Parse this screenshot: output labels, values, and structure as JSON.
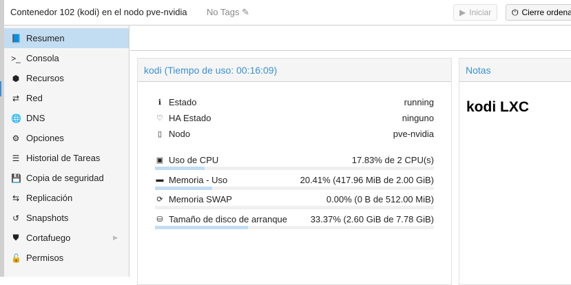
{
  "header": {
    "title": "Contenedor 102 (kodi) en el nodo pve-nvidia",
    "tags": "No Tags",
    "start_label": "Iniciar",
    "shutdown_label": "Cierre ordena"
  },
  "sidebar": {
    "items": [
      {
        "label": "Resumen",
        "icon": "book-icon",
        "glyph": "📘",
        "active": true
      },
      {
        "label": "Consola",
        "icon": "terminal-icon",
        "glyph": ">_"
      },
      {
        "label": "Recursos",
        "icon": "cube-icon",
        "glyph": "⬢"
      },
      {
        "label": "Red",
        "icon": "exchange-icon",
        "glyph": "⇄"
      },
      {
        "label": "DNS",
        "icon": "globe-icon",
        "glyph": "🌐"
      },
      {
        "label": "Opciones",
        "icon": "gear-icon",
        "glyph": "⚙"
      },
      {
        "label": "Historial de Tareas",
        "icon": "list-icon",
        "glyph": "☰"
      },
      {
        "label": "Copia de seguridad",
        "icon": "floppy-icon",
        "glyph": "💾"
      },
      {
        "label": "Replicación",
        "icon": "retweet-icon",
        "glyph": "⇆"
      },
      {
        "label": "Snapshots",
        "icon": "history-icon",
        "glyph": "↺"
      },
      {
        "label": "Cortafuego",
        "icon": "shield-icon",
        "glyph": "⛊",
        "submenu": true
      },
      {
        "label": "Permisos",
        "icon": "unlock-icon",
        "glyph": "🔓"
      }
    ]
  },
  "status_panel": {
    "title": "kodi (Tiempo de uso: 00:16:09)",
    "info": [
      {
        "label": "Estado",
        "value": "running",
        "glyph": "ℹ"
      },
      {
        "label": "HA Estado",
        "value": "ninguno",
        "glyph": "♡"
      },
      {
        "label": "Nodo",
        "value": "pve-nvidia",
        "glyph": "▯"
      }
    ],
    "usage": [
      {
        "label": "Uso de CPU",
        "value": "17.83% de 2 CPU(s)",
        "glyph": "▣",
        "percent": 17.83
      },
      {
        "label": "Memoria - Uso",
        "value": "20.41% (417.96 MiB de 2.00 GiB)",
        "glyph": "▬",
        "percent": 20.41
      },
      {
        "label": "Memoria SWAP",
        "value": "0.00% (0 B de 512.00 MiB)",
        "glyph": "⟳",
        "percent": 0
      },
      {
        "label": "Tamaño de disco de arranque",
        "value": "33.37% (2.60 GiB de 7.78 GiB)",
        "glyph": "⛁",
        "percent": 33.37
      }
    ]
  },
  "notes_panel": {
    "title": "Notas",
    "content": "kodi LXC"
  }
}
